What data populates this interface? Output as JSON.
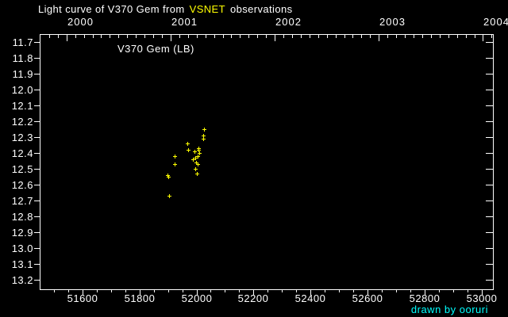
{
  "title": {
    "prefix": "Light curve of V370 Gem from",
    "highlight": "VSNET",
    "suffix": "observations"
  },
  "annotation": "V370 Gem (LB)",
  "credit": "drawn by ooruri",
  "colors": {
    "background": "#000000",
    "foreground": "#ffffff",
    "accent_yellow": "#ffff00",
    "marker": "#ffff00",
    "credit_cyan": "#00ffff"
  },
  "chart_data": {
    "type": "scatter",
    "title": "Light curve of V370 Gem from VSNET observations",
    "series_name": "V370 Gem (LB)",
    "marker": "plus",
    "marker_color": "#ffff00",
    "y_axis_inverted": true,
    "grid": false,
    "legend": false,
    "xlim": [
      51450,
      53040
    ],
    "ylim": [
      11.65,
      13.26
    ],
    "x_major_ticks": [
      51600,
      51800,
      52000,
      52200,
      52400,
      52600,
      52800,
      53000
    ],
    "x_tick_labels": [
      "51600",
      "51800",
      "52000",
      "52200",
      "52400",
      "52600",
      "52800",
      "53000"
    ],
    "x_minor_step": 50,
    "y_ticks": [
      11.7,
      11.8,
      11.9,
      12.0,
      12.1,
      12.2,
      12.3,
      12.4,
      12.5,
      12.6,
      12.7,
      12.8,
      12.9,
      13.0,
      13.1,
      13.2
    ],
    "y_tick_labels": [
      "11.7",
      "11.8",
      "11.9",
      "12.0",
      "12.1",
      "12.2",
      "12.3",
      "12.4",
      "12.5",
      "12.6",
      "12.7",
      "12.8",
      "12.9",
      "13.0",
      "13.1",
      "13.2"
    ],
    "top_axis_years": [
      {
        "label": "2000",
        "jd": 51544
      },
      {
        "label": "2001",
        "jd": 51910
      },
      {
        "label": "2002",
        "jd": 52275
      },
      {
        "label": "2003",
        "jd": 52640
      },
      {
        "label": "2004",
        "jd": 53005
      }
    ],
    "top_axis_minor": "monthly",
    "points": [
      {
        "jd": 51898,
        "mag": 12.54
      },
      {
        "jd": 51900,
        "mag": 12.55
      },
      {
        "jd": 51904,
        "mag": 12.67
      },
      {
        "jd": 51924,
        "mag": 12.42
      },
      {
        "jd": 51924,
        "mag": 12.47
      },
      {
        "jd": 51969,
        "mag": 12.34
      },
      {
        "jd": 51972,
        "mag": 12.38
      },
      {
        "jd": 51988,
        "mag": 12.44
      },
      {
        "jd": 51993,
        "mag": 12.39
      },
      {
        "jd": 51996,
        "mag": 12.43
      },
      {
        "jd": 51997,
        "mag": 12.5
      },
      {
        "jd": 51999,
        "mag": 12.46
      },
      {
        "jd": 52002,
        "mag": 12.53
      },
      {
        "jd": 52003,
        "mag": 12.47
      },
      {
        "jd": 52004,
        "mag": 12.42
      },
      {
        "jd": 52006,
        "mag": 12.37
      },
      {
        "jd": 52007,
        "mag": 12.38
      },
      {
        "jd": 52009,
        "mag": 12.4
      },
      {
        "jd": 52024,
        "mag": 12.31
      },
      {
        "jd": 52025,
        "mag": 12.29
      },
      {
        "jd": 52027,
        "mag": 12.25
      }
    ]
  }
}
